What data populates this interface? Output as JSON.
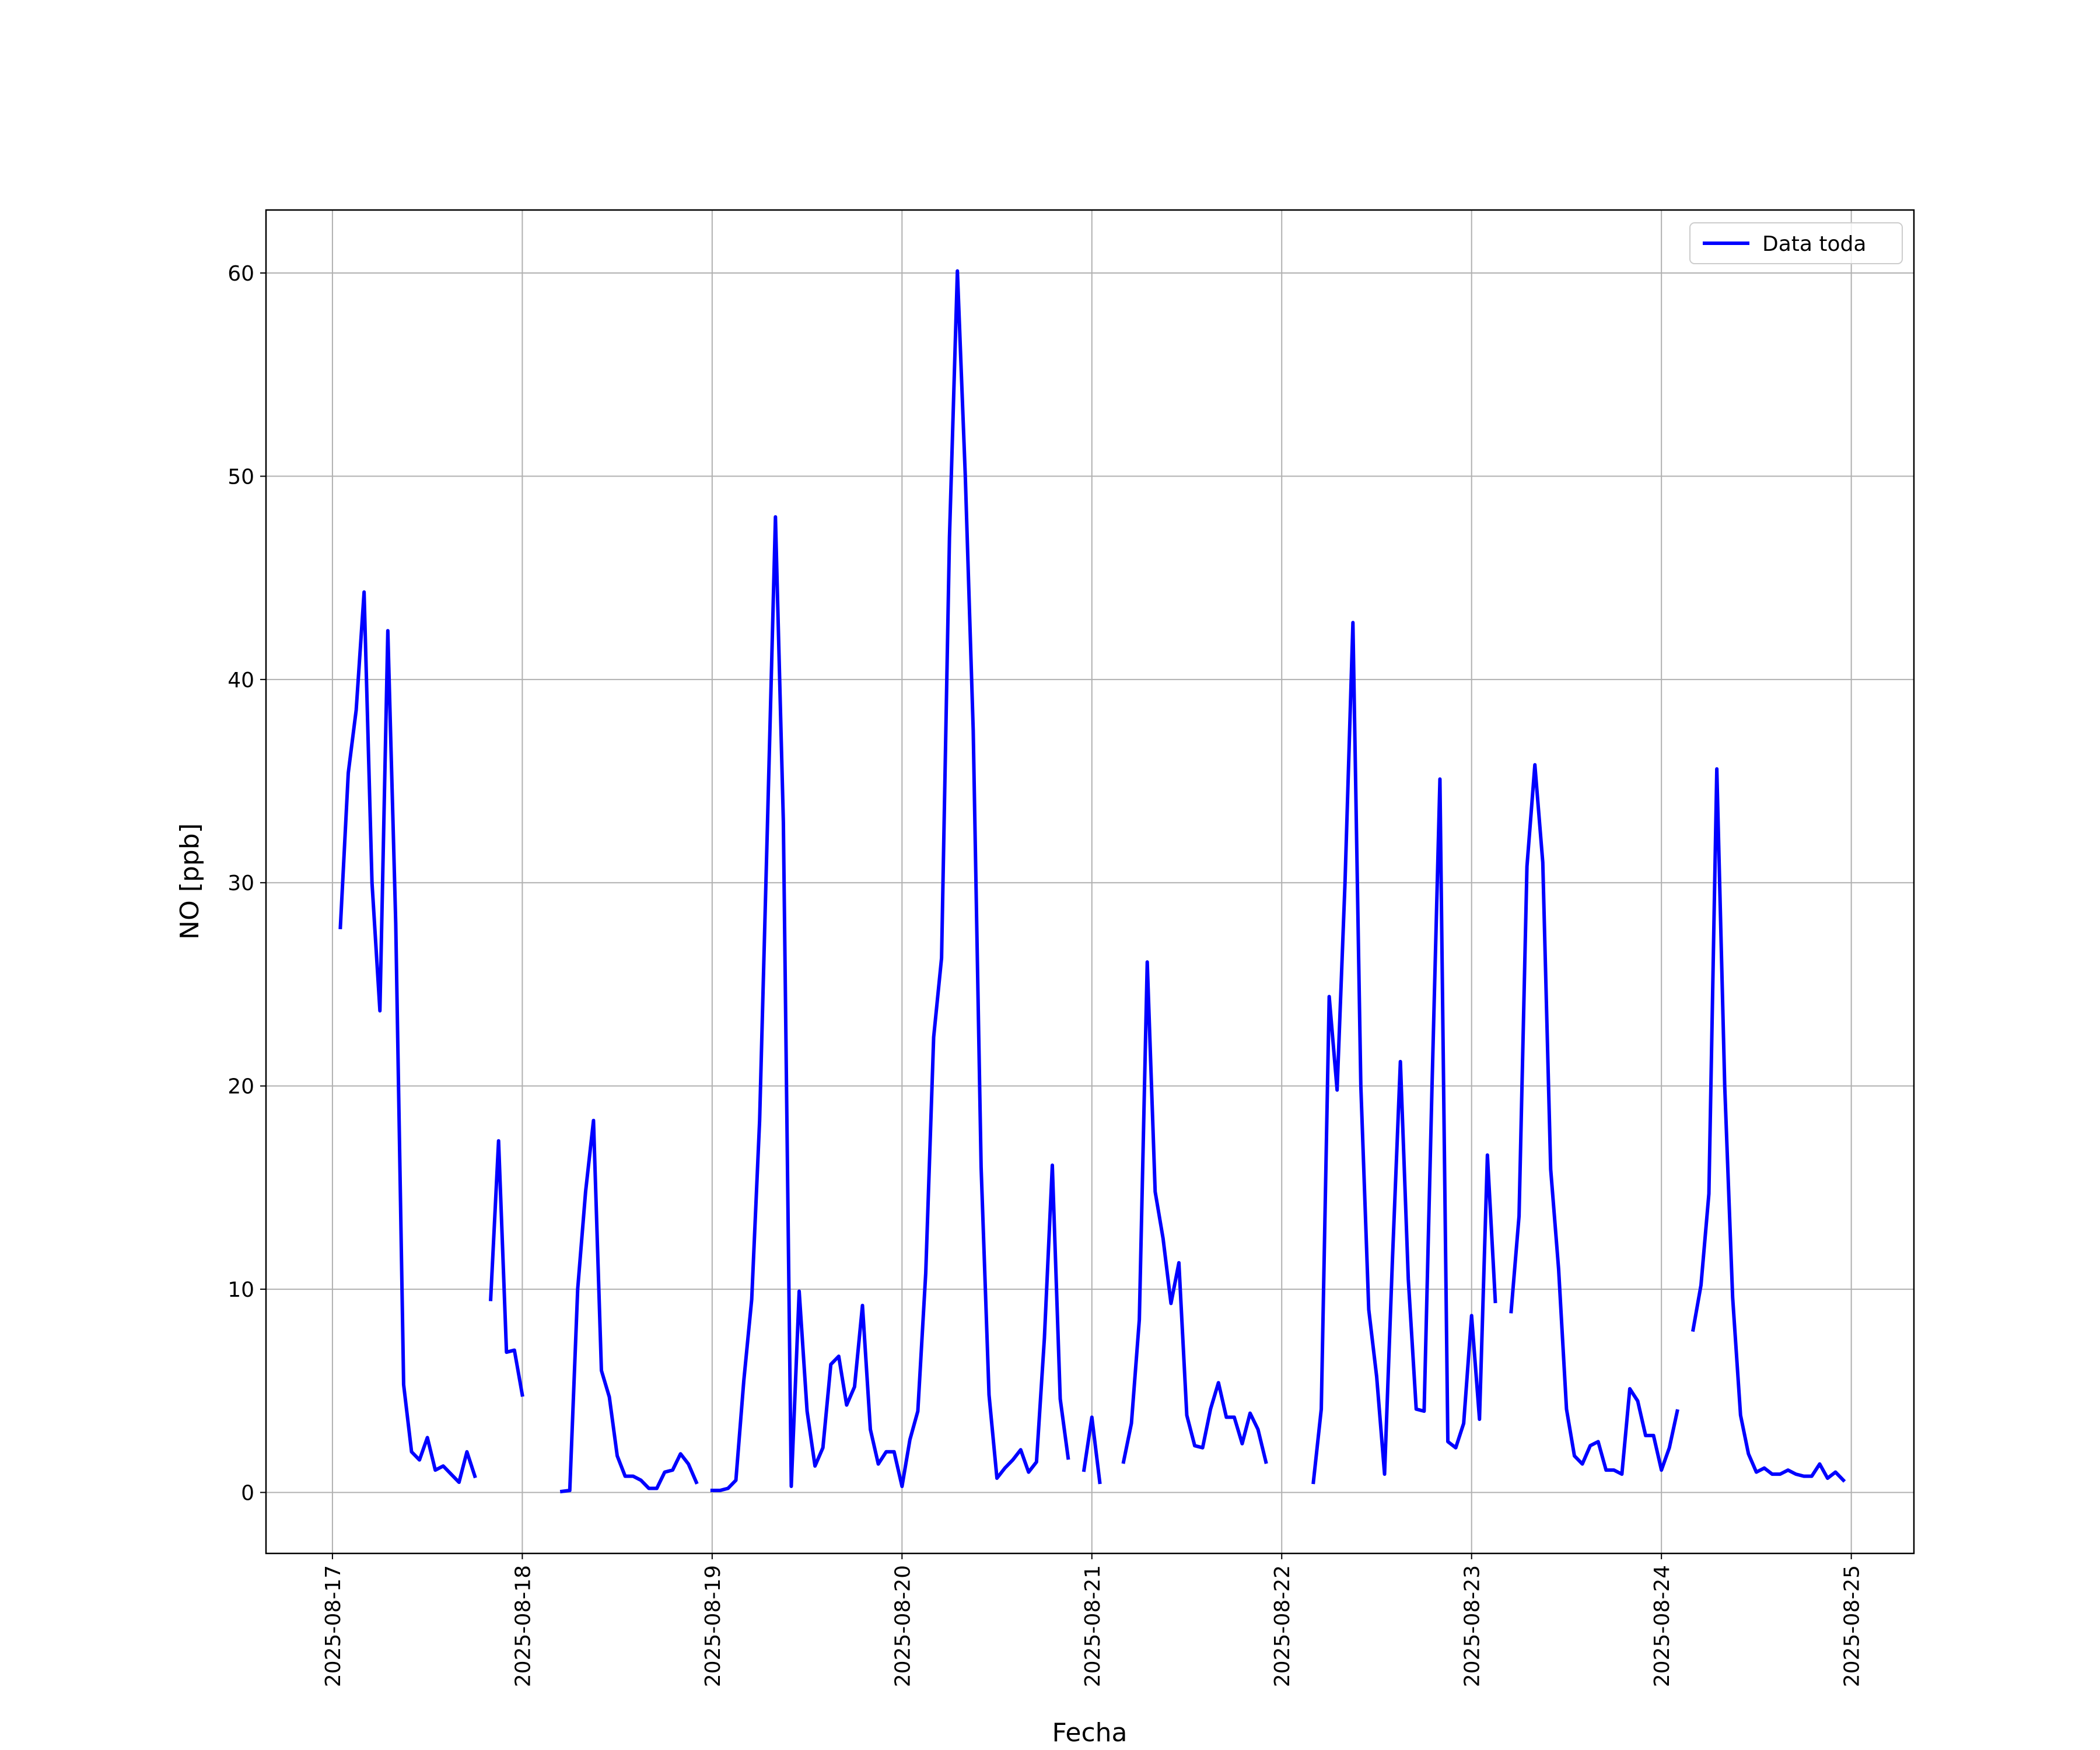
{
  "chart_data": {
    "type": "line",
    "xlabel": "Fecha",
    "ylabel": "NO [ppb]",
    "xlim": [
      "2025-08-16T15:36",
      "2025-08-25T07:55"
    ],
    "ylim": [
      -3,
      63.1
    ],
    "xticks": [
      "2025-08-17",
      "2025-08-18",
      "2025-08-19",
      "2025-08-20",
      "2025-08-21",
      "2025-08-22",
      "2025-08-23",
      "2025-08-24",
      "2025-08-25"
    ],
    "yticks": [
      0,
      10,
      20,
      30,
      40,
      50,
      60
    ],
    "grid": true,
    "legend": "upper right",
    "x": [
      "2025-08-17T01:00",
      "2025-08-17T02:00",
      "2025-08-17T03:00",
      "2025-08-17T04:00",
      "2025-08-17T05:00",
      "2025-08-17T06:00",
      "2025-08-17T07:00",
      "2025-08-17T08:00",
      "2025-08-17T09:00",
      "2025-08-17T10:00",
      "2025-08-17T11:00",
      "2025-08-17T12:00",
      "2025-08-17T13:00",
      "2025-08-17T14:00",
      "2025-08-17T15:00",
      "2025-08-17T16:00",
      "2025-08-17T17:00",
      "2025-08-17T18:00",
      "2025-08-17T19:00",
      "2025-08-17T20:00",
      "2025-08-17T21:00",
      "2025-08-17T22:00",
      "2025-08-17T23:00",
      "2025-08-18T00:00",
      "2025-08-18T01:00",
      "2025-08-18T02:00",
      "2025-08-18T03:00",
      "2025-08-18T04:00",
      "2025-08-18T05:00",
      "2025-08-18T06:00",
      "2025-08-18T07:00",
      "2025-08-18T08:00",
      "2025-08-18T09:00",
      "2025-08-18T10:00",
      "2025-08-18T11:00",
      "2025-08-18T12:00",
      "2025-08-18T13:00",
      "2025-08-18T14:00",
      "2025-08-18T15:00",
      "2025-08-18T16:00",
      "2025-08-18T17:00",
      "2025-08-18T18:00",
      "2025-08-18T19:00",
      "2025-08-18T20:00",
      "2025-08-18T21:00",
      "2025-08-18T22:00",
      "2025-08-18T23:00",
      "2025-08-19T00:00",
      "2025-08-19T01:00",
      "2025-08-19T02:00",
      "2025-08-19T03:00",
      "2025-08-19T04:00",
      "2025-08-19T05:00",
      "2025-08-19T06:00",
      "2025-08-19T07:00",
      "2025-08-19T08:00",
      "2025-08-19T09:00",
      "2025-08-19T10:00",
      "2025-08-19T11:00",
      "2025-08-19T12:00",
      "2025-08-19T13:00",
      "2025-08-19T14:00",
      "2025-08-19T15:00",
      "2025-08-19T16:00",
      "2025-08-19T17:00",
      "2025-08-19T18:00",
      "2025-08-19T19:00",
      "2025-08-19T20:00",
      "2025-08-19T21:00",
      "2025-08-19T22:00",
      "2025-08-19T23:00",
      "2025-08-20T00:00",
      "2025-08-20T01:00",
      "2025-08-20T02:00",
      "2025-08-20T03:00",
      "2025-08-20T04:00",
      "2025-08-20T05:00",
      "2025-08-20T06:00",
      "2025-08-20T07:00",
      "2025-08-20T08:00",
      "2025-08-20T09:00",
      "2025-08-20T10:00",
      "2025-08-20T11:00",
      "2025-08-20T12:00",
      "2025-08-20T13:00",
      "2025-08-20T14:00",
      "2025-08-20T15:00",
      "2025-08-20T16:00",
      "2025-08-20T17:00",
      "2025-08-20T18:00",
      "2025-08-20T19:00",
      "2025-08-20T20:00",
      "2025-08-20T21:00",
      "2025-08-20T22:00",
      "2025-08-20T23:00",
      "2025-08-21T00:00",
      "2025-08-21T01:00",
      "2025-08-21T02:00",
      "2025-08-21T03:00",
      "2025-08-21T04:00",
      "2025-08-21T05:00",
      "2025-08-21T06:00",
      "2025-08-21T07:00",
      "2025-08-21T08:00",
      "2025-08-21T09:00",
      "2025-08-21T10:00",
      "2025-08-21T11:00",
      "2025-08-21T12:00",
      "2025-08-21T13:00",
      "2025-08-21T14:00",
      "2025-08-21T15:00",
      "2025-08-21T16:00",
      "2025-08-21T17:00",
      "2025-08-21T18:00",
      "2025-08-21T19:00",
      "2025-08-21T20:00",
      "2025-08-21T21:00",
      "2025-08-21T22:00",
      "2025-08-21T23:00",
      "2025-08-22T00:00",
      "2025-08-22T01:00",
      "2025-08-22T02:00",
      "2025-08-22T03:00",
      "2025-08-22T04:00",
      "2025-08-22T05:00",
      "2025-08-22T06:00",
      "2025-08-22T07:00",
      "2025-08-22T08:00",
      "2025-08-22T09:00",
      "2025-08-22T10:00",
      "2025-08-22T11:00",
      "2025-08-22T12:00",
      "2025-08-22T13:00",
      "2025-08-22T14:00",
      "2025-08-22T15:00",
      "2025-08-22T16:00",
      "2025-08-22T17:00",
      "2025-08-22T18:00",
      "2025-08-22T19:00",
      "2025-08-22T20:00",
      "2025-08-22T21:00",
      "2025-08-22T22:00",
      "2025-08-22T23:00",
      "2025-08-23T00:00",
      "2025-08-23T01:00",
      "2025-08-23T02:00",
      "2025-08-23T03:00",
      "2025-08-23T04:00",
      "2025-08-23T05:00",
      "2025-08-23T06:00",
      "2025-08-23T07:00",
      "2025-08-23T08:00",
      "2025-08-23T09:00",
      "2025-08-23T10:00",
      "2025-08-23T11:00",
      "2025-08-23T12:00",
      "2025-08-23T13:00",
      "2025-08-23T14:00",
      "2025-08-23T15:00",
      "2025-08-23T16:00",
      "2025-08-23T17:00",
      "2025-08-23T18:00",
      "2025-08-23T19:00",
      "2025-08-23T20:00",
      "2025-08-23T21:00",
      "2025-08-23T22:00",
      "2025-08-23T23:00",
      "2025-08-24T00:00",
      "2025-08-24T01:00",
      "2025-08-24T02:00",
      "2025-08-24T03:00",
      "2025-08-24T04:00",
      "2025-08-24T05:00",
      "2025-08-24T06:00",
      "2025-08-24T07:00",
      "2025-08-24T08:00",
      "2025-08-24T09:00",
      "2025-08-24T10:00",
      "2025-08-24T11:00",
      "2025-08-24T12:00",
      "2025-08-24T13:00",
      "2025-08-24T14:00",
      "2025-08-24T15:00",
      "2025-08-24T16:00",
      "2025-08-24T17:00",
      "2025-08-24T18:00",
      "2025-08-24T19:00",
      "2025-08-24T20:00",
      "2025-08-24T21:00",
      "2025-08-24T22:00",
      "2025-08-24T23:00"
    ],
    "series": [
      {
        "name": "Data toda",
        "color": "#0000ff",
        "values": [
          27.8,
          35.4,
          38.5,
          44.3,
          30,
          23.7,
          42.4,
          28,
          5.3,
          2,
          1.6,
          2.7,
          1.1,
          1.3,
          0.9,
          0.5,
          2,
          0.8,
          null,
          9.5,
          17.3,
          6.9,
          7,
          4.8,
          null,
          null,
          null,
          null,
          0.05,
          0.1,
          10,
          14.8,
          18.3,
          6,
          4.7,
          1.8,
          0.8,
          0.8,
          0.6,
          0.2,
          0.2,
          1,
          1.1,
          1.9,
          1.4,
          0.5,
          null,
          0.1,
          0.1,
          0.2,
          0.6,
          5.5,
          9.5,
          18.3,
          33,
          48,
          33,
          0.3,
          9.9,
          4,
          1.3,
          2.2,
          6.3,
          6.7,
          4.3,
          5.2,
          9.2,
          3.1,
          1.4,
          2,
          2,
          0.3,
          2.6,
          4,
          10.8,
          22.4,
          26.3,
          47,
          60.1,
          50,
          37.5,
          16,
          4.8,
          0.7,
          1.2,
          1.6,
          2.1,
          1,
          1.5,
          7.6,
          16.1,
          4.6,
          1.7,
          null,
          1.1,
          3.7,
          0.5,
          null,
          null,
          1.5,
          3.4,
          8.5,
          26.1,
          14.8,
          12.5,
          9.3,
          11.3,
          3.8,
          2.3,
          2.2,
          4.1,
          5.4,
          3.7,
          3.7,
          2.4,
          3.9,
          3.1,
          1.5,
          null,
          null,
          null,
          null,
          null,
          0.5,
          4.1,
          24.4,
          19.8,
          30,
          42.8,
          20,
          9,
          5.7,
          0.9,
          11.5,
          21.2,
          10.5,
          4.1,
          4,
          20,
          35.1,
          2.5,
          2.2,
          3.4,
          8.7,
          3.6,
          16.6,
          9.4,
          null,
          8.9,
          13.6,
          30.8,
          35.8,
          31,
          15.9,
          11,
          4.1,
          1.8,
          1.4,
          2.3,
          2.5,
          1.1,
          1.1,
          0.9,
          5.1,
          4.5,
          2.8,
          2.8,
          1.1,
          2.2,
          4,
          null,
          8,
          10.2,
          14.7,
          35.6,
          20,
          9.6,
          3.8,
          1.9,
          1,
          1.2,
          0.9,
          0.9,
          1.1,
          0.9,
          0.8,
          0.8,
          1.4,
          0.7,
          1,
          0.6
        ]
      }
    ]
  }
}
